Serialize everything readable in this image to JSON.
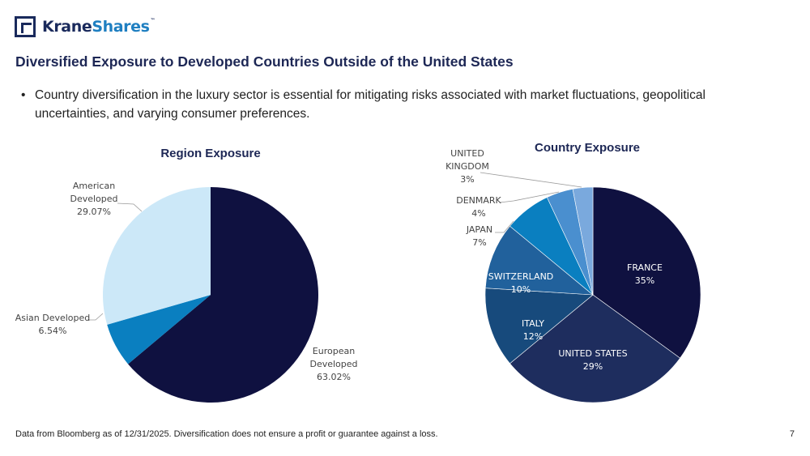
{
  "brand": {
    "name_part1": "Krane",
    "name_part2": "Shares",
    "trademark": "™"
  },
  "title": "Diversified Exposure to Developed Countries Outside of the United States",
  "bullet": {
    "marker": "•",
    "text": "Country diversification in the luxury sector is essential for mitigating risks associated with market fluctuations, geopolitical uncertainties, and varying consumer preferences."
  },
  "footnote": "Data from Bloomberg as of 12/31/2025. Diversification does not ensure a profit or guarantee against a loss.",
  "page_number": "7",
  "chart_data": [
    {
      "type": "pie",
      "title": "Region Exposure",
      "slices": [
        {
          "label": "European Developed",
          "value": 63.02,
          "display": "63.02%",
          "color": "#0f1140"
        },
        {
          "label": "Asian Developed",
          "value": 6.54,
          "display": "6.54%",
          "color": "#0a7fc0"
        },
        {
          "label": "American Developed",
          "value": 29.07,
          "display": "29.07%",
          "color": "#cce8f8"
        }
      ]
    },
    {
      "type": "pie",
      "title": "Country Exposure",
      "slices": [
        {
          "label": "FRANCE",
          "value": 35,
          "display": "35%",
          "color": "#0f1140"
        },
        {
          "label": "UNITED STATES",
          "value": 29,
          "display": "29%",
          "color": "#1e2d5e"
        },
        {
          "label": "ITALY",
          "value": 12,
          "display": "12%",
          "color": "#174a7c"
        },
        {
          "label": "SWITZERLAND",
          "value": 10,
          "display": "10%",
          "color": "#21619c"
        },
        {
          "label": "JAPAN",
          "value": 7,
          "display": "7%",
          "color": "#0a7fc0"
        },
        {
          "label": "DENMARK",
          "value": 4,
          "display": "4%",
          "color": "#4a8fcf"
        },
        {
          "label": "UNITED KINGDOM",
          "value": 3,
          "display": "3%",
          "color": "#7aa9dd"
        }
      ]
    }
  ]
}
